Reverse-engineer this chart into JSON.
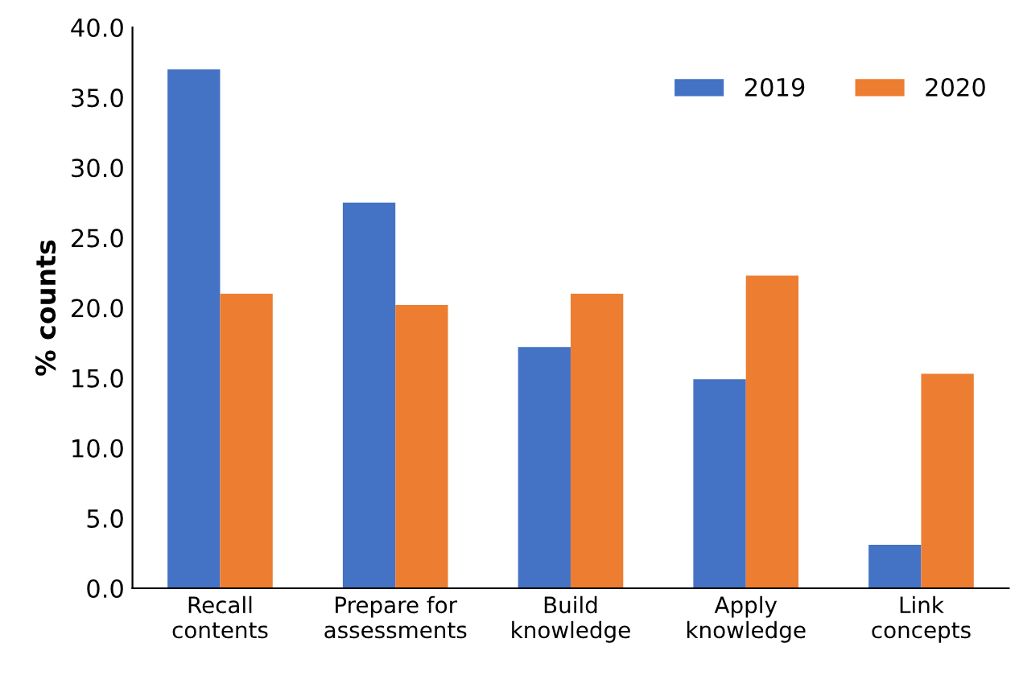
{
  "chart_data": {
    "type": "bar",
    "ylabel": "% counts",
    "categories": [
      "Recall\ncontents",
      "Prepare for\nassessments",
      "Build\nknowledge",
      "Apply\nknowledge",
      "Link\nconcepts"
    ],
    "series": [
      {
        "name": "2019",
        "color": "#4472c4",
        "values": [
          37.0,
          27.5,
          17.2,
          14.9,
          3.1
        ]
      },
      {
        "name": "2020",
        "color": "#ed7d31",
        "values": [
          21.0,
          20.2,
          21.0,
          22.3,
          15.3
        ]
      }
    ],
    "ylim": [
      0,
      40
    ],
    "yticks": [
      {
        "value": 0,
        "label": "0.0"
      },
      {
        "value": 5,
        "label": "5.0"
      },
      {
        "value": 10,
        "label": "10.0"
      },
      {
        "value": 15,
        "label": "15.0"
      },
      {
        "value": 20,
        "label": "20.0"
      },
      {
        "value": 25,
        "label": "25.0"
      },
      {
        "value": 30,
        "label": "30.0"
      },
      {
        "value": 35,
        "label": "35.0"
      },
      {
        "value": 40,
        "label": "40.0"
      }
    ],
    "legend": "top right"
  }
}
